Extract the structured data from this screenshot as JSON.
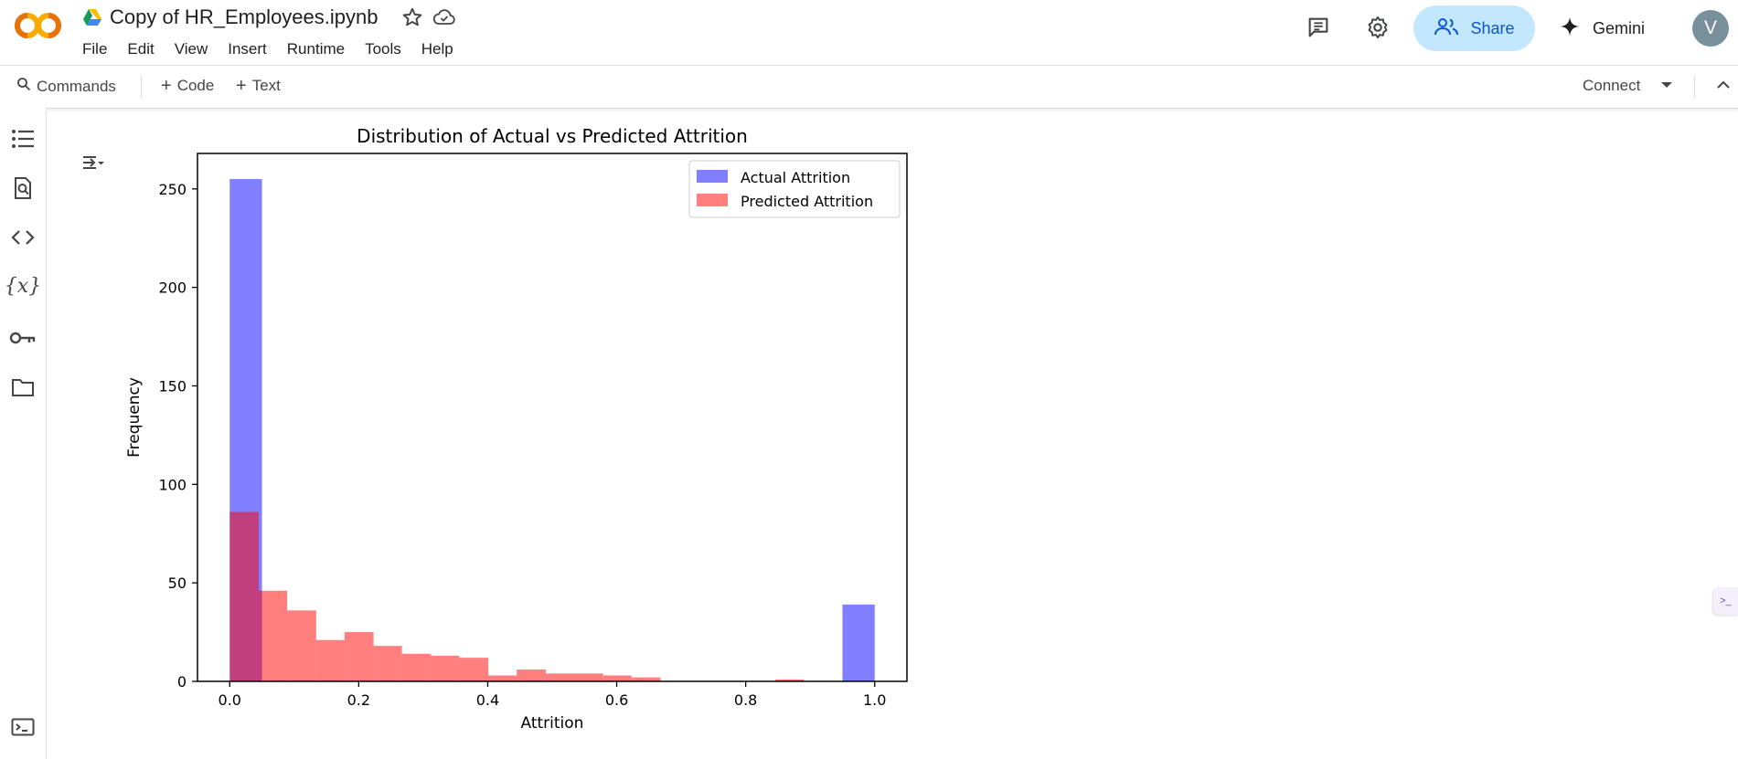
{
  "header": {
    "title": "Copy of HR_Employees.ipynb",
    "logo_text": "CO",
    "icons": {
      "drive": "google-drive-icon",
      "star": "star-icon",
      "cloud": "cloud-saved-icon",
      "comments": "comments-icon",
      "settings": "gear-icon",
      "share": "people-icon",
      "gemini": "sparkle-icon"
    },
    "menu": [
      "File",
      "Edit",
      "View",
      "Insert",
      "Runtime",
      "Tools",
      "Help"
    ],
    "share_label": "Share",
    "gemini_label": "Gemini",
    "avatar_initial": "V",
    "colors": {
      "share_bg": "#c2e7ff",
      "share_text": "#0b57d0",
      "logo_orange": "#f9ab00",
      "logo_deep": "#e8710a",
      "avatar_bg": "#78909c"
    }
  },
  "toolbar": {
    "commands_label": "Commands",
    "add_code_label": "Code",
    "add_text_label": "Text",
    "connect_label": "Connect"
  },
  "rail": {
    "icons": [
      "table-of-contents-icon",
      "find-replace-icon",
      "code-snippets-icon",
      "variables-icon",
      "secrets-key-icon",
      "files-folder-icon",
      "terminal-icon"
    ]
  },
  "chart_data": {
    "type": "bar",
    "title": "Distribution of Actual vs Predicted Attrition",
    "xlabel": "Attrition",
    "ylabel": "Frequency",
    "xlim": [
      -0.05,
      1.05
    ],
    "ylim": [
      0,
      268
    ],
    "x_ticks": [
      "0.0",
      "0.2",
      "0.4",
      "0.6",
      "0.8",
      "1.0"
    ],
    "x_tick_values": [
      0.0,
      0.2,
      0.4,
      0.6,
      0.8,
      1.0
    ],
    "y_ticks": [
      "0",
      "50",
      "100",
      "150",
      "200",
      "250"
    ],
    "y_tick_values": [
      0,
      50,
      100,
      150,
      200,
      250
    ],
    "legend_position": "top-right",
    "series": [
      {
        "name": "Actual Attrition",
        "color": "#0000ff",
        "alpha": 0.5,
        "bin_edges": [
          0.0,
          0.05,
          0.1,
          0.15,
          0.2,
          0.25,
          0.3,
          0.35,
          0.4,
          0.45,
          0.5,
          0.55,
          0.6,
          0.65,
          0.7,
          0.75,
          0.8,
          0.85,
          0.9,
          0.95,
          1.0
        ],
        "values": [
          255,
          0,
          0,
          0,
          0,
          0,
          0,
          0,
          0,
          0,
          0,
          0,
          0,
          0,
          0,
          0,
          0,
          0,
          0,
          39
        ]
      },
      {
        "name": "Predicted Attrition",
        "color": "#ff0000",
        "alpha": 0.5,
        "bin_edges": [
          0.0,
          0.045,
          0.089,
          0.134,
          0.178,
          0.223,
          0.267,
          0.312,
          0.356,
          0.401,
          0.445,
          0.49,
          0.534,
          0.579,
          0.623,
          0.668,
          0.712,
          0.757,
          0.801,
          0.846,
          0.89
        ],
        "values": [
          86,
          46,
          36,
          21,
          25,
          18,
          14,
          13,
          12,
          3,
          6,
          4,
          4,
          3,
          2,
          0,
          0,
          0,
          0,
          1
        ]
      }
    ]
  }
}
